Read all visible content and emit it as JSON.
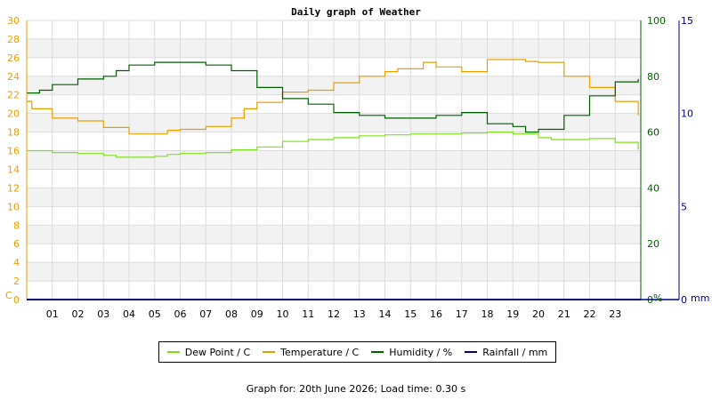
{
  "chart_data": {
    "type": "line",
    "title": "Daily graph of Weather",
    "x_ticks": [
      "01",
      "02",
      "03",
      "04",
      "05",
      "06",
      "07",
      "08",
      "09",
      "10",
      "11",
      "12",
      "13",
      "14",
      "15",
      "16",
      "17",
      "18",
      "19",
      "20",
      "21",
      "22",
      "23"
    ],
    "left_axis": {
      "unit": "C",
      "ylim": [
        0,
        30
      ],
      "ticks": [
        "0",
        "2",
        "4",
        "6",
        "8",
        "10",
        "12",
        "14",
        "16",
        "18",
        "20",
        "22",
        "24",
        "26",
        "28",
        "30"
      ],
      "color": "#e8a000"
    },
    "right_axis_1": {
      "unit": "%",
      "ylim": [
        0,
        100
      ],
      "ticks": [
        "0",
        "20",
        "40",
        "60",
        "80",
        "100"
      ],
      "color": "#006000"
    },
    "right_axis_2": {
      "unit": "mm",
      "ylim": [
        0,
        15
      ],
      "ticks": [
        "0",
        "5",
        "10",
        "15"
      ],
      "color": "#000080"
    },
    "series": [
      {
        "name": "Dew Point / C",
        "axis": "left",
        "color": "#80e020",
        "x": [
          0,
          1,
          2,
          3,
          3.5,
          4,
          5,
          5.5,
          6,
          7,
          8,
          9,
          10,
          11,
          12,
          13,
          14,
          15,
          16,
          17,
          18,
          19,
          20,
          20.5,
          21,
          22,
          23,
          23.9
        ],
        "y": [
          16,
          15.8,
          15.7,
          15.5,
          15.3,
          15.3,
          15.4,
          15.6,
          15.7,
          15.8,
          16.1,
          16.4,
          17,
          17.2,
          17.4,
          17.6,
          17.7,
          17.8,
          17.8,
          17.9,
          18,
          17.8,
          17.4,
          17.2,
          17.2,
          17.3,
          16.9,
          16.1
        ]
      },
      {
        "name": "Temperature / C",
        "axis": "left",
        "color": "#e8a000",
        "x": [
          0,
          0.2,
          1,
          2,
          3,
          4,
          5,
          5.5,
          6,
          7,
          8,
          8.5,
          9,
          10,
          11,
          12,
          13,
          14,
          14.5,
          15,
          15.5,
          16,
          17,
          17.9,
          18,
          19,
          19.5,
          20,
          21,
          22,
          23,
          23.9
        ],
        "y": [
          21.3,
          20.5,
          19.5,
          19.2,
          18.5,
          17.8,
          17.8,
          18.2,
          18.3,
          18.6,
          19.5,
          20.5,
          21.2,
          22.3,
          22.5,
          23.3,
          24,
          24.5,
          24.8,
          24.8,
          25.5,
          25,
          24.5,
          24.5,
          25.8,
          25.8,
          25.6,
          25.5,
          24,
          22.8,
          21.3,
          19.8
        ]
      },
      {
        "name": "Humidity / %",
        "axis": "right_axis_1",
        "color": "#006000",
        "x": [
          0,
          0.5,
          1,
          2,
          3,
          3.5,
          4,
          5,
          6,
          7,
          8,
          9,
          10,
          11,
          12,
          13,
          14,
          15,
          16,
          17,
          17.9,
          18,
          19,
          19.5,
          20,
          21,
          22,
          23,
          23.9
        ],
        "y": [
          74,
          75,
          77,
          79,
          80,
          82,
          84,
          85,
          85,
          84,
          82,
          76,
          72,
          70,
          67,
          66,
          65,
          65,
          66,
          67,
          67,
          63,
          62,
          60,
          61,
          66,
          73,
          78,
          79
        ]
      },
      {
        "name": "Rainfall / mm",
        "axis": "right_axis_2",
        "color": "#000080",
        "x": [
          0,
          24
        ],
        "y": [
          0,
          0
        ]
      }
    ],
    "grid": true,
    "legend_position": "bottom"
  },
  "footer": "Graph for: 20th June 2026; Load time: 0.30 s"
}
